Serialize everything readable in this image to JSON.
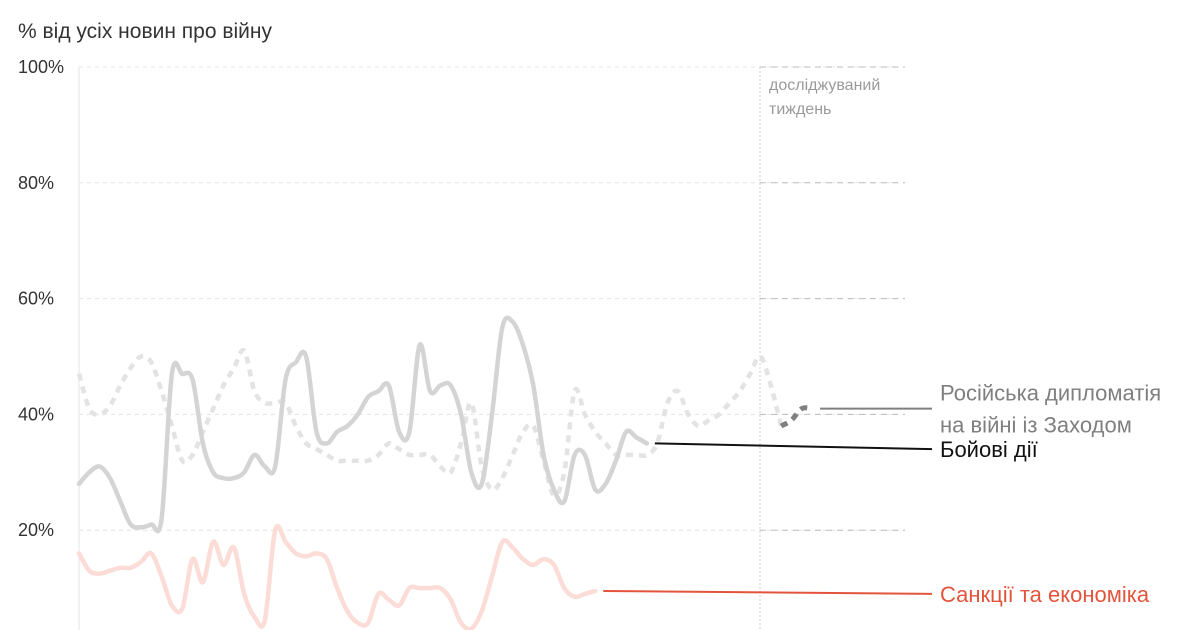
{
  "chart_data": {
    "type": "line",
    "y_axis_title": "% від усіх новин про війну",
    "y_ticks": [
      20,
      40,
      60,
      80,
      100
    ],
    "y_tick_labels": [
      "20%",
      "40%",
      "60%",
      "80%",
      "100%"
    ],
    "ylim": [
      0,
      100
    ],
    "xlim": [
      0,
      80
    ],
    "grid": true,
    "highlight_start": 68,
    "highlight_annotation": [
      "досліджуваний",
      "тиждень"
    ],
    "colors": {
      "diplomacy_faded": "#e3e3e3",
      "diplomacy": "#7f7f7f",
      "combat_faded": "#d4d4d4",
      "combat": "#111111",
      "sanctions_faded": "#fbdcd6",
      "sanctions": "#e3543c",
      "grid": "#cccccc",
      "divider": "#d7d7d7"
    },
    "series": [
      {
        "key": "diplomacy",
        "name": "Російська дипломатія на війні із Заходом",
        "label_lines": [
          "Російська дипломатія",
          "на війні із Заходом"
        ],
        "dash": "7,6",
        "label_y": 41,
        "points": [
          [
            0,
            47
          ],
          [
            1,
            41
          ],
          [
            2,
            40
          ],
          [
            3,
            41.5
          ],
          [
            4,
            45
          ],
          [
            5,
            48
          ],
          [
            6,
            50
          ],
          [
            7,
            49
          ],
          [
            8,
            44
          ],
          [
            9,
            38
          ],
          [
            10,
            32
          ],
          [
            11,
            33
          ],
          [
            12,
            37
          ],
          [
            13,
            41
          ],
          [
            14,
            45
          ],
          [
            15,
            48
          ],
          [
            16,
            51
          ],
          [
            17,
            44
          ],
          [
            18,
            42
          ],
          [
            19,
            42
          ],
          [
            20,
            42
          ],
          [
            21,
            38
          ],
          [
            22,
            35
          ],
          [
            23,
            34
          ],
          [
            24,
            33
          ],
          [
            25,
            32
          ],
          [
            26,
            32
          ],
          [
            27,
            32
          ],
          [
            28,
            32
          ],
          [
            29,
            33
          ],
          [
            30,
            35
          ],
          [
            31,
            34
          ],
          [
            32,
            33
          ],
          [
            33,
            33
          ],
          [
            34,
            33
          ],
          [
            35,
            31
          ],
          [
            36,
            30
          ],
          [
            37,
            35
          ],
          [
            38,
            42
          ],
          [
            39,
            31
          ],
          [
            40,
            27
          ],
          [
            41,
            29
          ],
          [
            42,
            33
          ],
          [
            43,
            37
          ],
          [
            44,
            38
          ],
          [
            45,
            32
          ],
          [
            46,
            26
          ],
          [
            47,
            30
          ],
          [
            48,
            44
          ],
          [
            49,
            40
          ],
          [
            50,
            37
          ],
          [
            51,
            35
          ],
          [
            52,
            33
          ],
          [
            53,
            33
          ],
          [
            54,
            33
          ],
          [
            55,
            33
          ],
          [
            56,
            35
          ],
          [
            57,
            42
          ],
          [
            58,
            44
          ],
          [
            59,
            40
          ],
          [
            60,
            38
          ],
          [
            61,
            39
          ],
          [
            62,
            40
          ],
          [
            63,
            42
          ],
          [
            64,
            44
          ],
          [
            65,
            47
          ],
          [
            66,
            50
          ],
          [
            67,
            45
          ],
          [
            68,
            38
          ],
          [
            69,
            39
          ],
          [
            70,
            41
          ],
          [
            71,
            41
          ]
        ]
      },
      {
        "key": "combat",
        "name": "Бойові дії",
        "label_lines": [
          "Бойові дії"
        ],
        "dash": null,
        "label_y": 34,
        "points": [
          [
            0,
            28
          ],
          [
            1,
            30
          ],
          [
            2,
            31
          ],
          [
            3,
            29
          ],
          [
            4,
            25
          ],
          [
            5,
            21
          ],
          [
            6,
            20.5
          ],
          [
            7,
            21
          ],
          [
            8,
            22
          ],
          [
            9,
            47
          ],
          [
            10,
            47
          ],
          [
            11,
            46
          ],
          [
            12,
            35
          ],
          [
            13,
            30
          ],
          [
            14,
            29
          ],
          [
            15,
            29
          ],
          [
            16,
            30
          ],
          [
            17,
            33
          ],
          [
            18,
            31
          ],
          [
            19,
            31
          ],
          [
            20,
            46
          ],
          [
            21,
            49
          ],
          [
            22,
            50
          ],
          [
            23,
            37
          ],
          [
            24,
            35
          ],
          [
            25,
            37
          ],
          [
            26,
            38
          ],
          [
            27,
            40
          ],
          [
            28,
            43
          ],
          [
            29,
            44
          ],
          [
            30,
            45
          ],
          [
            31,
            37
          ],
          [
            32,
            37
          ],
          [
            33,
            52
          ],
          [
            34,
            44
          ],
          [
            35,
            45
          ],
          [
            36,
            45
          ],
          [
            37,
            40
          ],
          [
            38,
            30
          ],
          [
            39,
            28
          ],
          [
            40,
            40
          ],
          [
            41,
            55
          ],
          [
            42,
            56
          ],
          [
            43,
            52
          ],
          [
            44,
            45
          ],
          [
            45,
            33
          ],
          [
            46,
            27
          ],
          [
            47,
            25
          ],
          [
            48,
            33
          ],
          [
            49,
            33
          ],
          [
            50,
            27
          ],
          [
            51,
            28
          ],
          [
            52,
            32
          ],
          [
            53,
            37
          ],
          [
            54,
            36
          ],
          [
            55,
            35
          ]
        ]
      },
      {
        "key": "sanctions",
        "name": "Санкції та економіка",
        "label_lines": [
          "Санкції та економіка"
        ],
        "dash": null,
        "label_y": 9,
        "points": [
          [
            0,
            16
          ],
          [
            1,
            13
          ],
          [
            2,
            12.5
          ],
          [
            3,
            13
          ],
          [
            4,
            13.5
          ],
          [
            5,
            13.5
          ],
          [
            6,
            14.5
          ],
          [
            7,
            16
          ],
          [
            8,
            12
          ],
          [
            9,
            7
          ],
          [
            10,
            6.5
          ],
          [
            11,
            15
          ],
          [
            12,
            11
          ],
          [
            13,
            18
          ],
          [
            14,
            14
          ],
          [
            15,
            17
          ],
          [
            16,
            9
          ],
          [
            17,
            5
          ],
          [
            18,
            4.5
          ],
          [
            19,
            20
          ],
          [
            20,
            18
          ],
          [
            21,
            16
          ],
          [
            22,
            15.5
          ],
          [
            23,
            16
          ],
          [
            24,
            15
          ],
          [
            25,
            10
          ],
          [
            26,
            6
          ],
          [
            27,
            4
          ],
          [
            28,
            4
          ],
          [
            29,
            9
          ],
          [
            30,
            8
          ],
          [
            31,
            7
          ],
          [
            32,
            10
          ],
          [
            33,
            10
          ],
          [
            34,
            10
          ],
          [
            35,
            10
          ],
          [
            36,
            8
          ],
          [
            37,
            4
          ],
          [
            38,
            3
          ],
          [
            39,
            6
          ],
          [
            40,
            12
          ],
          [
            41,
            18
          ],
          [
            42,
            17
          ],
          [
            43,
            15
          ],
          [
            44,
            14
          ],
          [
            45,
            15
          ],
          [
            46,
            14
          ],
          [
            47,
            10
          ],
          [
            48,
            8.5
          ],
          [
            49,
            9
          ],
          [
            50,
            9.5
          ]
        ]
      }
    ]
  }
}
